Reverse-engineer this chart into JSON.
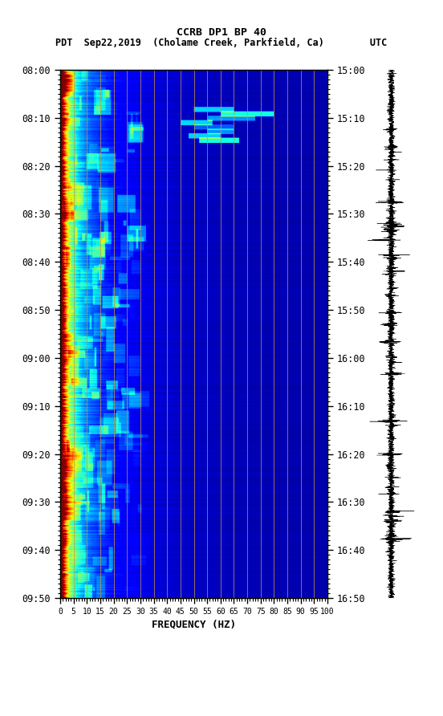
{
  "title_line1": "CCRB DP1 BP 40",
  "title_line2": "PDT  Sep22,2019  (Cholame Creek, Parkfield, Ca)        UTC",
  "xlabel": "FREQUENCY (HZ)",
  "left_times": [
    "08:00",
    "08:10",
    "08:20",
    "08:30",
    "08:40",
    "08:50",
    "09:00",
    "09:10",
    "09:20",
    "09:30",
    "09:40",
    "09:50"
  ],
  "right_times": [
    "15:00",
    "15:10",
    "15:20",
    "15:30",
    "15:40",
    "15:50",
    "16:00",
    "16:10",
    "16:20",
    "16:30",
    "16:40",
    "16:50"
  ],
  "freq_ticks": [
    0,
    5,
    10,
    15,
    20,
    25,
    30,
    35,
    40,
    45,
    50,
    55,
    60,
    65,
    70,
    75,
    80,
    85,
    90,
    95,
    100
  ],
  "freq_min": 0,
  "freq_max": 100,
  "n_time_steps": 600,
  "n_freq_steps": 500,
  "background_color": "#ffffff",
  "colormap": "jet",
  "vline_color": "#c8963c",
  "vline_alpha": 0.75,
  "usgs_green": "#1a6b3c",
  "tick_label_fontsize": 8.5,
  "title_fontsize": 9.5,
  "axis_label_fontsize": 9
}
